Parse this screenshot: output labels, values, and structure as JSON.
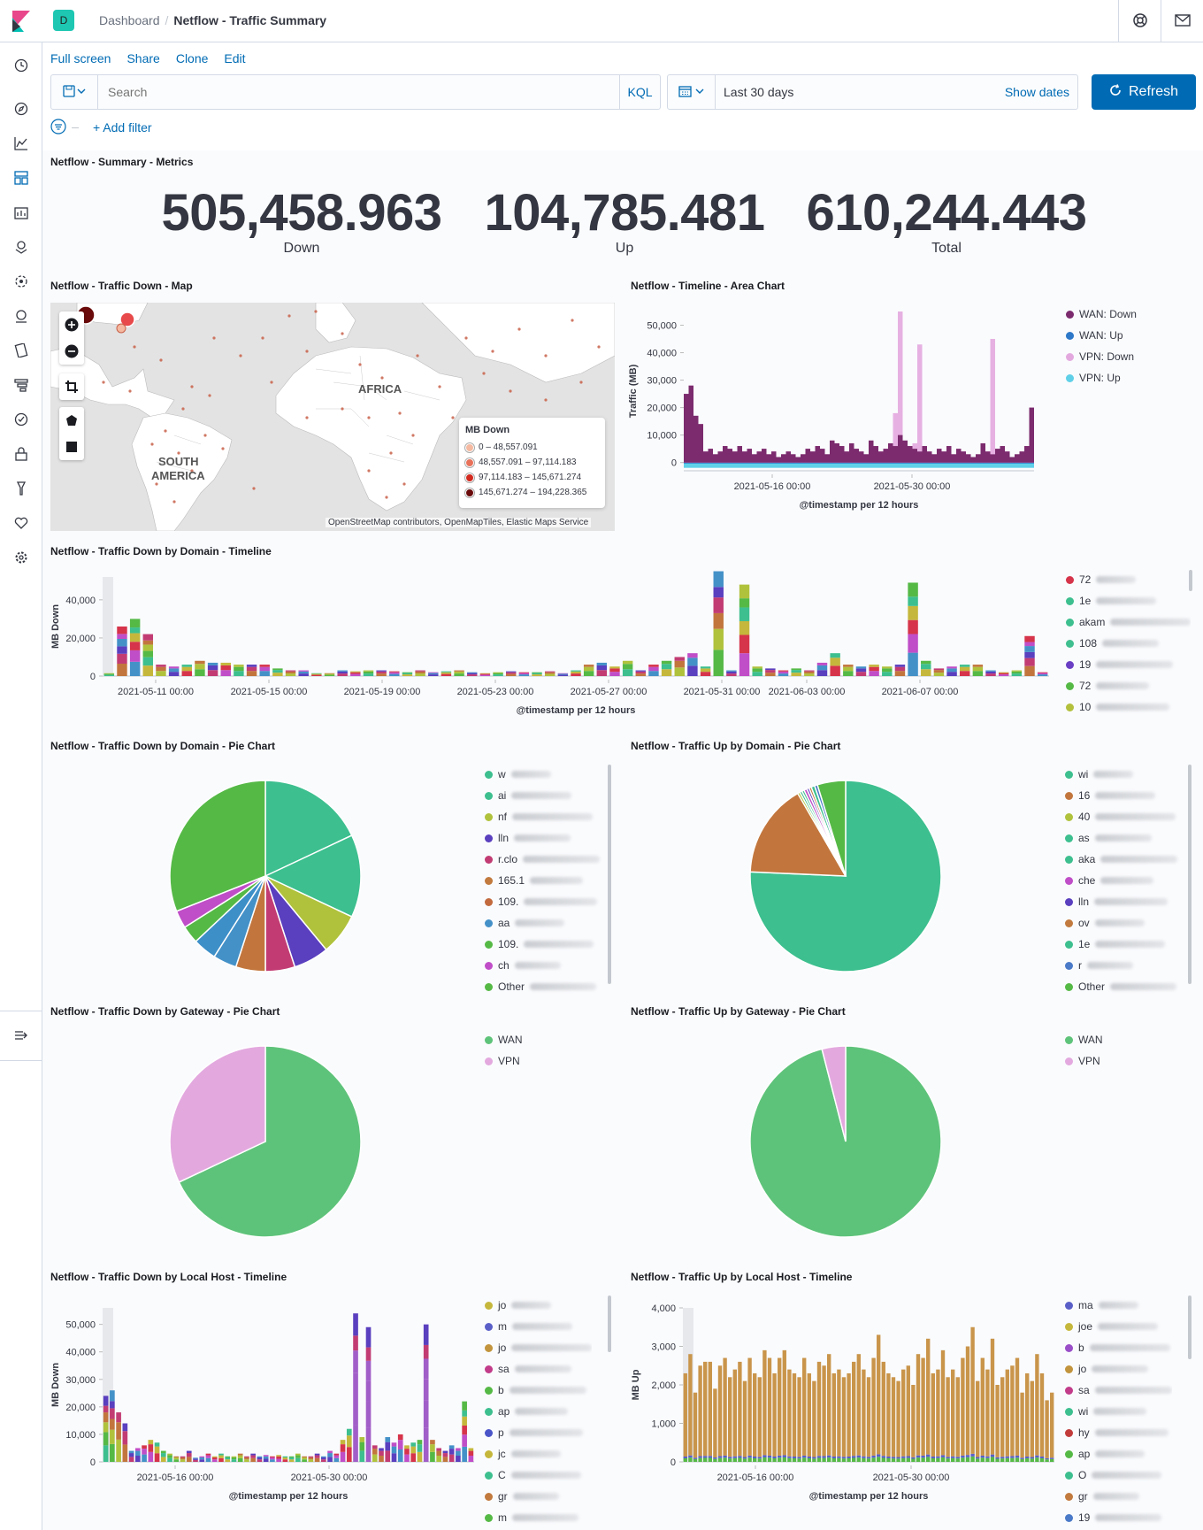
{
  "header": {
    "space_badge": "D",
    "breadcrumb_root": "Dashboard",
    "breadcrumb_current": "Netflow - Traffic Summary"
  },
  "topnav": {
    "full_screen": "Full screen",
    "share": "Share",
    "clone": "Clone",
    "edit": "Edit"
  },
  "query": {
    "placeholder": "Search",
    "language": "KQL"
  },
  "time": {
    "range": "Last 30 days",
    "show_dates": "Show dates",
    "refresh": "Refresh"
  },
  "filter": {
    "add_filter": "+ Add filter"
  },
  "panels": {
    "metrics": {
      "title": "Netflow - Summary - Metrics",
      "items": [
        {
          "value": "505,458.963",
          "label": "Down"
        },
        {
          "value": "104,785.481",
          "label": "Up"
        },
        {
          "value": "610,244.443",
          "label": "Total"
        }
      ]
    },
    "map": {
      "title": "Netflow - Traffic Down - Map",
      "labels": [
        "AFRICA",
        "SOUTH",
        "AMERICA"
      ],
      "legend_title": "MB Down",
      "legend": [
        {
          "label": "0 – 48,557.091",
          "color": "#f4b9a0"
        },
        {
          "label": "48,557.091 – 97,114.183",
          "color": "#e8715a"
        },
        {
          "label": "97,114.183 – 145,671.274",
          "color": "#d22a1f"
        },
        {
          "label": "145,671.274 – 194,228.365",
          "color": "#6a0a0a"
        }
      ],
      "attribution": "OpenStreetMap contributors, OpenMapTiles, Elastic Maps Service"
    },
    "area": {
      "title": "Netflow - Timeline - Area Chart"
    },
    "domain_timeline": {
      "title": "Netflow - Traffic Down by Domain - Timeline"
    },
    "pie_down_domain": {
      "title": "Netflow - Traffic Down by Domain - Pie Chart"
    },
    "pie_up_domain": {
      "title": "Netflow - Traffic Up by Domain - Pie Chart"
    },
    "pie_down_gateway": {
      "title": "Netflow - Traffic Down by Gateway - Pie Chart"
    },
    "pie_up_gateway": {
      "title": "Netflow - Traffic Up by Gateway - Pie Chart"
    },
    "host_down": {
      "title": "Netflow - Traffic Down by Local Host - Timeline"
    },
    "host_up": {
      "title": "Netflow - Traffic Up by Local Host - Timeline"
    }
  },
  "legends": {
    "area": [
      {
        "label": "WAN: Down",
        "color": "#7b2b6e"
      },
      {
        "label": "WAN: Up",
        "color": "#2d78c8"
      },
      {
        "label": "VPN: Down",
        "color": "#e3a9df"
      },
      {
        "label": "VPN: Up",
        "color": "#5fd0e8"
      }
    ],
    "domain_timeline": [
      {
        "label": "72",
        "color": "#d6344a"
      },
      {
        "label": "1e",
        "color": "#3dbf8f"
      },
      {
        "label": "akam",
        "color": "#3dbf8f"
      },
      {
        "label": "108",
        "color": "#3fbf90"
      },
      {
        "label": "19",
        "color": "#6a3fc4"
      },
      {
        "label": "72",
        "color": "#55b946"
      },
      {
        "label": "10",
        "color": "#b3c03c"
      }
    ],
    "pie_down_domain": [
      {
        "label": "w",
        "color": "#3dbf8f"
      },
      {
        "label": "ai",
        "color": "#3dbf8f"
      },
      {
        "label": "nf",
        "color": "#b0c23c"
      },
      {
        "label": "lln",
        "color": "#5a3fbf"
      },
      {
        "label": "r.clo",
        "color": "#c23c73"
      },
      {
        "label": "165.1",
        "color": "#c27a3e"
      },
      {
        "label": "109.",
        "color": "#c26a3e"
      },
      {
        "label": "aa",
        "color": "#4491c8"
      },
      {
        "label": "109.",
        "color": "#55b946"
      },
      {
        "label": "ch",
        "color": "#c04ec8"
      },
      {
        "label": "Other",
        "color": "#55b946"
      }
    ],
    "pie_up_domain": [
      {
        "label": "wi",
        "color": "#3dbf8f"
      },
      {
        "label": "16",
        "color": "#c2763d"
      },
      {
        "label": "40",
        "color": "#b0c23c"
      },
      {
        "label": "as",
        "color": "#3dbf8f"
      },
      {
        "label": "aka",
        "color": "#3dbf8f"
      },
      {
        "label": "che",
        "color": "#c04ec8"
      },
      {
        "label": "lln",
        "color": "#5a3fbf"
      },
      {
        "label": "ov",
        "color": "#c27a3e"
      },
      {
        "label": "1e",
        "color": "#3dbf8f"
      },
      {
        "label": "r",
        "color": "#4a7ac8"
      },
      {
        "label": "Other",
        "color": "#55b946"
      }
    ],
    "gateway": [
      {
        "label": "WAN",
        "color": "#5ec37a"
      },
      {
        "label": "VPN",
        "color": "#e3a9df"
      }
    ],
    "host_down": [
      {
        "label": "jo",
        "color": "#c5b73c"
      },
      {
        "label": "m",
        "color": "#5a5fc8"
      },
      {
        "label": "jo",
        "color": "#c2943d"
      },
      {
        "label": "sa",
        "color": "#c23c8a"
      },
      {
        "label": "b",
        "color": "#55b946"
      },
      {
        "label": "ap",
        "color": "#3dbf8f"
      },
      {
        "label": "p",
        "color": "#4a55c8"
      },
      {
        "label": "jc",
        "color": "#c5b73c"
      },
      {
        "label": "C",
        "color": "#3dbf8f"
      },
      {
        "label": "gr",
        "color": "#c27a3e"
      },
      {
        "label": "m",
        "color": "#55b946"
      }
    ],
    "host_up": [
      {
        "label": "ma",
        "color": "#5a5fc8"
      },
      {
        "label": "joe",
        "color": "#c5b73c"
      },
      {
        "label": "b",
        "color": "#9a4ec8"
      },
      {
        "label": "jo",
        "color": "#c2943d"
      },
      {
        "label": "sa",
        "color": "#c23c8a"
      },
      {
        "label": "wi",
        "color": "#3dbf8f"
      },
      {
        "label": "hy",
        "color": "#c23c3c"
      },
      {
        "label": "ap",
        "color": "#55b946"
      },
      {
        "label": "O",
        "color": "#3dbf8f"
      },
      {
        "label": "gr",
        "color": "#c27a3e"
      },
      {
        "label": "19",
        "color": "#4a7ac8"
      }
    ]
  },
  "chart_data": [
    {
      "type": "area",
      "ylabel": "Traffic (MB)",
      "xlabel": "@timestamp per 12 hours",
      "yticks": [
        "0",
        "10,000",
        "20,000",
        "30,000",
        "40,000",
        "50,000"
      ],
      "xticks": [
        "2021-05-16 00:00",
        "2021-05-30 00:00"
      ],
      "ylim": [
        -3000,
        55000
      ],
      "series": [
        {
          "name": "WAN: Down",
          "color": "#7b2b6e",
          "values": [
            25000,
            28000,
            17000,
            14000,
            4000,
            5000,
            3000,
            4000,
            6000,
            5000,
            4000,
            6000,
            4000,
            5000,
            3000,
            4000,
            5000,
            3000,
            4000,
            2000,
            3000,
            4000,
            3000,
            2000,
            3000,
            5000,
            4000,
            6000,
            5000,
            3000,
            8000,
            7000,
            6000,
            4000,
            7000,
            5000,
            4000,
            3000,
            8000,
            6000,
            4000,
            5000,
            7000,
            6000,
            10000,
            8000,
            6000,
            5000,
            4000,
            6000,
            4000,
            3000,
            5000,
            4000,
            6000,
            3000,
            5000,
            4000,
            3000,
            2000,
            3000,
            7000,
            4000,
            3000,
            5000,
            6000,
            4000,
            2000,
            3000,
            4000,
            6000,
            20000
          ]
        },
        {
          "name": "VPN: Down",
          "color": "#e3a9df",
          "values": [
            0,
            0,
            0,
            0,
            0,
            0,
            0,
            0,
            0,
            0,
            0,
            0,
            0,
            0,
            0,
            0,
            0,
            0,
            0,
            0,
            0,
            0,
            0,
            0,
            0,
            0,
            0,
            0,
            0,
            0,
            0,
            0,
            0,
            0,
            0,
            0,
            0,
            0,
            0,
            0,
            0,
            0,
            0,
            12000,
            45000,
            0,
            0,
            2000,
            39000,
            0,
            0,
            0,
            0,
            0,
            0,
            0,
            0,
            0,
            0,
            0,
            0,
            0,
            0,
            42000,
            0,
            0,
            0,
            0,
            0,
            0,
            0,
            0
          ]
        }
      ]
    },
    {
      "type": "bar",
      "ylabel": "MB Down",
      "xlabel": "@timestamp per 12 hours",
      "yticks": [
        "0",
        "20,000",
        "40,000"
      ],
      "xticks": [
        "2021-05-11 00:00",
        "2021-05-15 00:00",
        "2021-05-19 00:00",
        "2021-05-23 00:00",
        "2021-05-27 00:00",
        "2021-05-31 00:00",
        "2021-06-03 00:00",
        "2021-06-07 00:00"
      ],
      "ylim": [
        0,
        52000
      ],
      "values": [
        1500,
        26000,
        30000,
        22000,
        6000,
        5000,
        6000,
        8000,
        7000,
        7000,
        6000,
        6000,
        6000,
        4000,
        3000,
        3000,
        1500,
        1500,
        3000,
        2500,
        3000,
        3000,
        2500,
        2000,
        3000,
        2000,
        2500,
        3000,
        2000,
        1500,
        2000,
        2500,
        2000,
        2000,
        2500,
        1500,
        3000,
        6000,
        7000,
        5000,
        8000,
        3000,
        6000,
        8000,
        10000,
        12000,
        5000,
        55000,
        3000,
        48000,
        5000,
        4000,
        3000,
        4000,
        3000,
        7000,
        12000,
        6000,
        5000,
        6000,
        5000,
        6000,
        49000,
        8000,
        4000,
        5000,
        6000,
        6000,
        3000,
        2000,
        3000,
        21000,
        2000
      ]
    },
    {
      "type": "pie",
      "title": "Netflow - Traffic Down by Domain - Pie Chart",
      "values": [
        18,
        14,
        7,
        6,
        5,
        5,
        4,
        4,
        3,
        3,
        31
      ],
      "colors": [
        "#3dbf8f",
        "#3dbf8f",
        "#b0c23c",
        "#5a3fbf",
        "#c23c73",
        "#c2763d",
        "#4491c8",
        "#3d8fc8",
        "#55b946",
        "#c04ec8",
        "#55b946"
      ]
    },
    {
      "type": "pie",
      "title": "Netflow - Traffic Up by Domain - Pie Chart",
      "values": [
        76,
        16,
        0.4,
        0.4,
        0.4,
        0.5,
        0.4,
        0.4,
        0.6,
        0.5,
        4.8
      ],
      "colors": [
        "#3dbf8f",
        "#c2763d",
        "#b0c23c",
        "#3dbf8f",
        "#3dbf8f",
        "#c04ec8",
        "#5a3fbf",
        "#c27a3e",
        "#3dbf8f",
        "#4a7ac8",
        "#55b946"
      ]
    },
    {
      "type": "pie",
      "title": "Netflow - Traffic Down by Gateway - Pie Chart",
      "values": [
        68,
        32
      ],
      "colors": [
        "#5ec37a",
        "#e3a9df"
      ]
    },
    {
      "type": "pie",
      "title": "Netflow - Traffic Up by Gateway - Pie Chart",
      "values": [
        96,
        4
      ],
      "colors": [
        "#5ec37a",
        "#e3a9df"
      ]
    },
    {
      "type": "bar",
      "ylabel": "MB Down",
      "xlabel": "@timestamp per 12 hours",
      "yticks": [
        "0",
        "10,000",
        "20,000",
        "30,000",
        "40,000",
        "50,000"
      ],
      "xticks": [
        "2021-05-16 00:00",
        "2021-05-30 00:00"
      ],
      "ylim": [
        0,
        56000
      ],
      "values": [
        24000,
        26000,
        18000,
        14000,
        4000,
        5000,
        6000,
        8000,
        7000,
        4000,
        3000,
        2000,
        2000,
        4000,
        1500,
        2000,
        3000,
        2000,
        3000,
        2000,
        2000,
        3000,
        2000,
        3000,
        2000,
        2500,
        2000,
        2500,
        2000,
        2000,
        3000,
        2000,
        2000,
        3000,
        2000,
        4000,
        3000,
        8000,
        12000,
        54000,
        9000,
        49000,
        6000,
        5000,
        9000,
        7000,
        10000,
        6000,
        7000,
        8000,
        50000,
        8000,
        5000,
        4000,
        6000,
        5000,
        22000,
        5000
      ]
    },
    {
      "type": "bar",
      "ylabel": "MB Up",
      "xlabel": "@timestamp per 12 hours",
      "yticks": [
        "0",
        "1,000",
        "2,000",
        "3,000",
        "4,000"
      ],
      "xticks": [
        "2021-05-16 00:00",
        "2021-05-30 00:00"
      ],
      "ylim": [
        0,
        4000
      ],
      "values": [
        2300,
        2800,
        1800,
        2500,
        2600,
        2600,
        1900,
        2500,
        2700,
        2200,
        2400,
        2600,
        2100,
        2700,
        2300,
        2200,
        2900,
        2700,
        2300,
        2700,
        2900,
        2400,
        2300,
        2200,
        2700,
        2300,
        2100,
        2600,
        2500,
        2800,
        2300,
        2400,
        2200,
        2300,
        2600,
        2800,
        2400,
        2200,
        2700,
        3300,
        2600,
        2300,
        2200,
        2100,
        2400,
        2500,
        2000,
        2800,
        2700,
        3200,
        2300,
        2400,
        2900,
        2200,
        2400,
        2200,
        2700,
        3000,
        3500,
        2100,
        2700,
        2400,
        3200,
        2000,
        2200,
        2400,
        2500,
        2700,
        1800,
        2300,
        2100,
        2800,
        2300,
        1600,
        1800
      ]
    }
  ]
}
